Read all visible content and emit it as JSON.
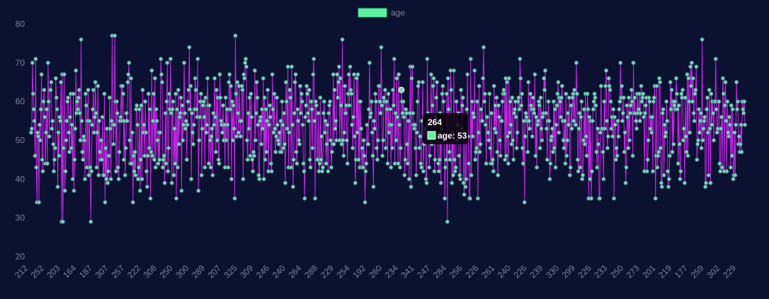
{
  "chart_data": {
    "type": "line",
    "title": "",
    "xlabel": "",
    "ylabel": "",
    "ylim": [
      20,
      80
    ],
    "y_ticks": [
      20,
      30,
      40,
      50,
      60,
      70,
      80
    ],
    "x_tick_labels": [
      "212",
      "252",
      "203",
      "164",
      "187",
      "307",
      "257",
      "222",
      "308",
      "250",
      "300",
      "289",
      "207",
      "325",
      "309",
      "246",
      "240",
      "264",
      "288",
      "229",
      "254",
      "192",
      "260",
      "234",
      "341",
      "247",
      "284",
      "256",
      "226",
      "261",
      "240",
      "226",
      "239",
      "330",
      "299",
      "226",
      "233",
      "250",
      "273",
      "201",
      "219",
      "177",
      "259",
      "302",
      "229"
    ],
    "grid": false,
    "legend": {
      "position": "top-center",
      "entries": [
        {
          "label": "age",
          "color": "#5cf2a0"
        }
      ]
    },
    "series": [
      {
        "name": "age",
        "line_color": "#cc22ee",
        "point_color": "#74d9b4",
        "values": [
          52,
          53,
          70,
          62,
          58,
          55,
          46,
          71,
          43,
          34,
          52,
          51,
          34,
          54,
          50,
          58,
          67,
          45,
          42,
          60,
          63,
          56,
          44,
          52,
          58,
          44,
          70,
          60,
          51,
          63,
          63,
          65,
          53,
          55,
          49,
          42,
          45,
          48,
          66,
          61,
          58,
          38,
          52,
          46,
          56,
          55,
          65,
          29,
          67,
          29,
          48,
          67,
          37,
          42,
          50,
          55,
          60,
          61,
          52,
          47,
          56,
          62,
          48,
          54,
          40,
          62,
          37,
          45,
          53,
          68,
          57,
          60,
          58,
          61,
          63,
          57,
          50,
          76,
          55,
          47,
          45,
          51,
          50,
          40,
          62,
          59,
          43,
          55,
          63,
          41,
          55,
          43,
          29,
          42,
          54,
          58,
          63,
          52,
          56,
          65,
          57,
          43,
          52,
          64,
          41,
          55,
          47,
          45,
          50,
          45,
          56,
          41,
          41,
          62,
          34,
          48,
          40,
          53,
          39,
          42,
          46,
          61,
          53,
          40,
          55,
          77,
          54,
          49,
          54,
          77,
          60,
          42,
          60,
          57,
          43,
          40,
          47,
          55,
          56,
          64,
          55,
          64,
          62,
          45,
          55,
          41,
          48,
          57,
          55,
          65,
          67,
          70,
          50,
          44,
          66,
          44,
          52,
          34,
          46,
          42,
          47,
          41,
          58,
          59,
          54,
          40,
          43,
          58,
          37,
          45,
          59,
          40,
          63,
          52,
          54,
          46,
          60,
          52,
          42,
          38,
          46,
          62,
          48,
          58,
          35,
          47,
          68,
          46,
          55,
          62,
          45,
          66,
          43,
          58,
          55,
          50,
          44,
          52,
          45,
          52,
          71,
          67,
          65,
          43,
          45,
          46,
          39,
          57,
          44,
          60,
          70,
          42,
          48,
          62,
          58,
          71,
          57,
          39,
          58,
          60,
          41,
          53,
          44,
          62,
          35,
          58,
          43,
          63,
          49,
          56,
          57,
          61,
          37,
          59,
          50,
          54,
          70,
          57,
          53,
          55,
          45,
          54,
          60,
          63,
          74,
          58,
          64,
          40,
          57,
          52,
          49,
          54,
          58,
          66,
          63,
          58,
          56,
          71,
          37,
          50,
          56,
          60,
          62,
          41,
          53,
          59,
          60,
          56,
          43,
          61,
          52,
          54,
          66,
          59,
          44,
          59,
          50,
          43,
          51,
          53,
          41,
          57,
          54,
          66,
          56,
          47,
          63,
          50,
          61,
          45,
          44,
          67,
          61,
          55,
          54,
          52,
          59,
          50,
          54,
          43,
          61,
          50,
          58,
          54,
          43,
          65,
          67,
          58,
          64,
          40,
          60,
          50,
          59,
          53,
          35,
          77,
          62,
          51,
          65,
          57,
          52,
          64,
          55,
          51,
          55,
          64,
          63,
          40,
          67,
          66,
          70,
          71,
          69,
          50,
          45,
          57,
          53,
          61,
          46,
          62,
          56,
          45,
          42,
          47,
          46,
          68,
          50,
          57,
          65,
          61,
          54,
          41,
          40,
          55,
          56,
          49,
          58,
          53,
          66,
          40,
          61,
          45,
          58,
          47,
          55,
          63,
          42,
          54,
          59,
          56,
          44,
          42,
          67,
          58,
          52,
          62,
          53,
          47,
          51,
          61,
          54,
          50,
          49,
          52,
          47,
          55,
          47,
          60,
          54,
          48,
          57,
          49,
          39,
          65,
          60,
          53,
          69,
          43,
          52,
          63,
          61,
          43,
          69,
          54,
          38,
          45,
          57,
          65,
          67,
          47,
          44,
          58,
          55,
          50,
          49,
          64,
          57,
          62,
          60,
          54,
          44,
          42,
          35,
          56,
          59,
          64,
          62,
          57,
          55,
          63,
          45,
          43,
          60,
          58,
          48,
          67,
          71,
          55,
          35,
          60,
          59,
          45,
          45,
          57,
          42,
          44,
          61,
          45,
          51,
          42,
          43,
          57,
          60,
          52,
          55,
          44,
          49,
          54,
          42,
          57,
          59,
          60,
          50,
          43,
          47,
          49,
          67,
          49,
          63,
          53,
          55,
          50,
          67,
          61,
          65,
          69,
          50,
          66,
          59,
          49,
          76,
          50,
          46,
          52,
          64,
          57,
          59,
          50,
          44,
          62,
          67,
          59,
          69,
          63,
          62,
          54,
          48,
          56,
          67,
          51,
          39,
          45,
          66,
          52,
          67,
          45,
          60,
          43,
          60,
          53,
          43,
          48,
          43,
          50,
          46,
          34,
          42,
          44,
          54,
          49,
          49,
          58,
          70,
          56,
          57,
          60,
          52,
          46,
          38,
          55,
          53,
          62,
          60,
          48,
          45,
          50,
          64,
          64,
          60,
          57,
          74,
          59,
          46,
          50,
          61,
          60,
          63,
          48,
          60,
          58,
          44,
          62,
          52,
          54,
          58,
          43,
          54,
          48,
          63,
          59,
          71,
          44,
          57,
          50,
          66,
          56,
          44,
          67,
          54,
          43,
          48,
          63,
          60,
          57,
          60,
          56,
          41,
          45,
          58,
          57,
          49,
          44,
          55,
          40,
          57,
          69,
          38,
          66,
          69,
          57,
          54,
          53,
          54,
          48,
          41,
          52,
          60,
          64,
          65,
          48,
          51,
          44,
          43,
          55,
          65,
          42,
          49,
          53,
          53,
          40,
          39,
          71,
          57,
          54,
          43,
          46,
          51,
          67,
          49,
          59,
          64,
          66,
          42,
          45,
          56,
          61,
          65,
          51,
          44,
          42,
          45,
          57,
          39,
          53,
          62,
          64,
          60,
          50,
          35,
          43,
          45,
          62,
          29,
          66,
          58,
          47,
          45,
          68,
          63,
          39,
          52,
          41,
          68,
          45,
          42,
          43,
          60,
          50,
          54,
          57,
          46,
          41,
          40,
          63,
          53,
          59,
          61,
          39,
          36,
          52,
          38,
          40,
          58,
          67,
          51,
          44,
          35,
          35,
          71,
          41,
          60,
          51,
          57,
          56,
          68,
          45,
          47,
          48,
          60,
          35,
          52,
          64,
          47,
          49,
          58,
          55,
          55,
          66,
          74,
          60,
          62,
          54,
          44,
          56,
          52,
          52,
          50,
          62,
          48,
          44,
          57,
          44,
          45,
          42,
          64,
          53,
          59,
          52,
          61,
          47,
          41,
          59,
          56,
          50,
          46,
          55,
          55,
          60,
          62,
          63,
          62,
          45,
          66,
          46,
          65,
          51,
          44,
          66,
          52,
          60,
          54,
          49,
          61,
          50,
          45,
          57,
          58,
          60,
          56,
          48,
          52,
          60,
          61,
          58,
          71,
          66,
          59,
          62,
          48,
          44,
          55,
          34,
          51,
          57,
          56,
          55,
          47,
          65,
          55,
          53,
          62,
          59,
          58,
          51,
          61,
          58,
          57,
          67,
          46,
          56,
          43,
          54,
          55,
          60,
          59,
          48,
          61,
          53,
          50,
          56,
          57,
          66,
          63,
          68,
          57,
          53,
          45,
          55,
          60,
          55,
          40,
          44,
          50,
          51,
          53,
          47,
          60,
          48,
          58,
          43,
          54,
          59,
          62,
          65,
          52,
          61,
          60,
          56,
          61,
          64,
          55,
          50,
          48,
          55,
          44,
          62,
          46,
          50,
          57,
          54,
          61,
          41,
          43,
          59,
          53,
          61,
          62,
          55,
          63,
          54,
          54,
          70,
          62,
          45,
          42,
          53,
          57,
          43,
          56,
          60,
          40,
          41,
          50,
          58,
          49,
          62,
          51,
          46,
          62,
          58,
          35,
          56,
          40,
          55,
          35,
          42,
          55,
          58,
          60,
          62,
          61,
          59,
          47,
          43,
          53,
          49,
          35,
          35,
          52,
          64,
          53,
          53,
          47,
          40,
          60,
          53,
          64,
          68,
          55,
          48,
          51,
          66,
          64,
          63,
          60,
          53,
          56,
          51,
          58,
          35,
          56,
          54,
          45,
          48,
          46,
          55,
          51,
          58,
          60,
          70,
          61,
          64,
          55,
          57,
          61,
          47,
          52,
          39,
          43,
          59,
          56,
          48,
          61,
          50,
          57,
          59,
          63,
          60,
          46,
          70,
          57,
          61,
          57,
          55,
          53,
          62,
          57,
          58,
          62,
          55,
          57,
          64,
          60,
          61,
          62,
          56,
          42,
          57,
          59,
          61,
          42,
          45,
          50,
          61,
          60,
          53,
          56,
          52,
          56,
          42,
          60,
          61,
          64,
          35,
          46,
          64,
          43,
          46,
          47,
          66,
          65,
          48,
          39,
          38,
          57,
          58,
          41,
          54,
          51,
          52,
          60,
          55,
          42,
          38,
          40,
          46,
          65,
          58,
          63,
          47,
          60,
          49,
          59,
          60,
          58,
          66,
          62,
          58,
          44,
          59,
          49,
          40,
          42,
          62,
          61,
          63,
          50,
          53,
          39,
          61,
          51,
          47,
          67,
          46,
          66,
          60,
          52,
          69,
          64,
          70,
          60,
          66,
          57,
          55,
          62,
          63,
          69,
          45,
          49,
          50,
          58,
          52,
          55,
          57,
          48,
          76,
          50,
          53,
          55,
          56,
          38,
          39,
          58,
          61,
          52,
          41,
          63,
          53,
          39,
          62,
          54,
          60,
          57,
          50,
          60,
          60,
          71,
          58,
          52,
          53,
          60,
          60,
          44,
          42,
          53,
          56,
          43,
          66,
          62,
          42,
          59,
          65,
          55,
          42,
          60,
          52,
          51,
          56,
          54,
          43,
          59,
          46,
          58,
          40,
          41,
          52,
          41,
          54,
          65,
          58,
          60,
          49,
          51,
          47,
          49,
          54,
          47,
          60,
          58,
          57,
          60,
          54
        ]
      }
    ],
    "tooltip": {
      "title": "264",
      "label": "age: 53",
      "point_index": 571
    }
  }
}
